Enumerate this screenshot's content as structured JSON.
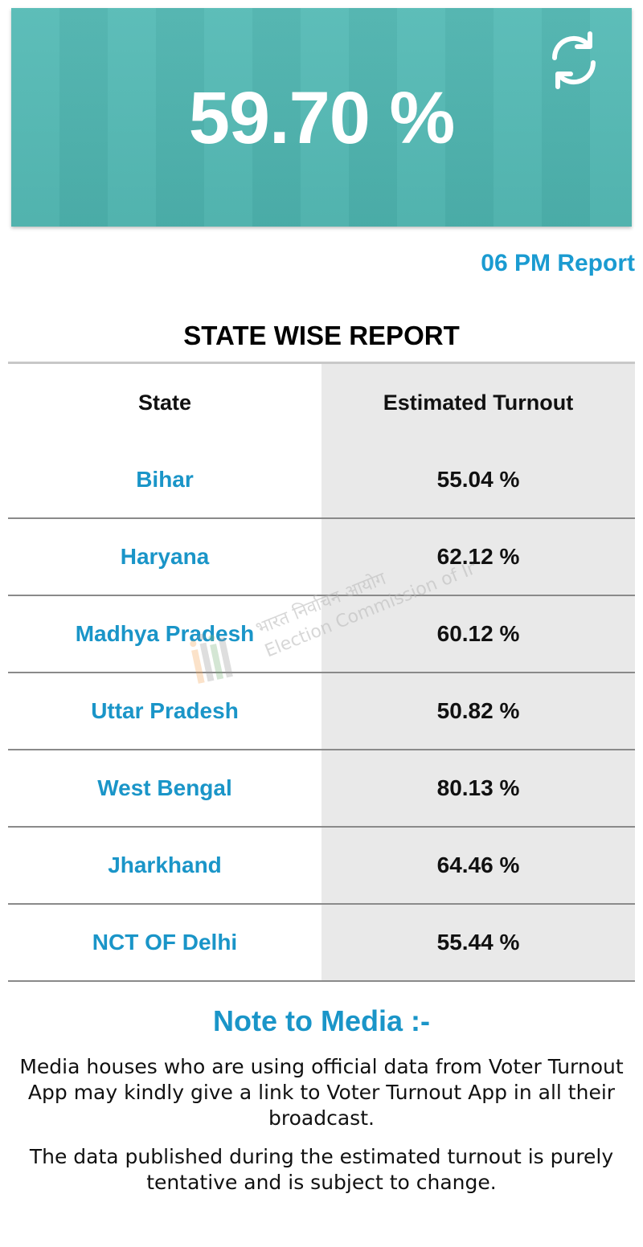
{
  "overall": {
    "turnout_label": "59.70 %",
    "turnout_value": 59.7,
    "refresh_icon": "refresh-icon",
    "report_time": "06 PM Report"
  },
  "table": {
    "title": "STATE WISE REPORT",
    "headers": {
      "state": "State",
      "turnout": "Estimated Turnout"
    },
    "rows": [
      {
        "state": "Bihar",
        "turnout": "55.04 %"
      },
      {
        "state": "Haryana",
        "turnout": "62.12 %"
      },
      {
        "state": "Madhya Pradesh",
        "turnout": "60.12 %"
      },
      {
        "state": "Uttar Pradesh",
        "turnout": "50.82 %"
      },
      {
        "state": "West Bengal",
        "turnout": "80.13 %"
      },
      {
        "state": "Jharkhand",
        "turnout": "64.46 %"
      },
      {
        "state": "NCT OF Delhi",
        "turnout": "55.44 %"
      }
    ]
  },
  "watermark": {
    "line1": "भारत निर्वाचन आयोग",
    "line2": "Election Commission of India"
  },
  "note": {
    "title": "Note to Media :-",
    "paragraph1": "Media houses who are using official data from Voter Turnout App may kindly give a link to Voter Turnout App in all their broadcast.",
    "paragraph2": "The data published during the estimated turnout is purely tentative and is subject to change."
  },
  "colors": {
    "hero_background": "#4fb8b3",
    "link_blue": "#1a95c8",
    "turnout_column_bg": "#e9e9e9"
  }
}
